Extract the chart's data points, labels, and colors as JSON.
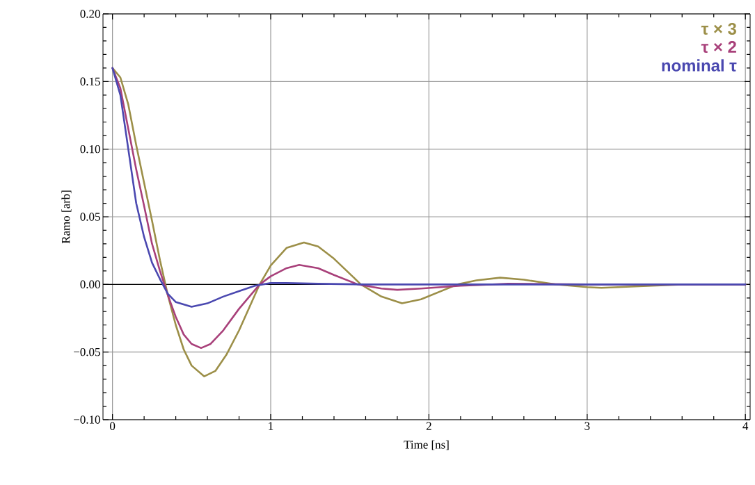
{
  "chart_data": {
    "type": "line",
    "xlabel": "Time [ns]",
    "ylabel": "Ramo [arb]",
    "xlim": [
      -0.06,
      4.03
    ],
    "ylim": [
      -0.1,
      0.2
    ],
    "xticks": [
      0,
      1,
      2,
      3,
      4
    ],
    "yticks": [
      {
        "value": -0.1,
        "label": "−0.10"
      },
      {
        "value": -0.05,
        "label": "−0.05"
      },
      "0.00",
      "0.05",
      "0.10",
      "0.15",
      "0.20"
    ],
    "grid": true,
    "legend": "top right",
    "marker": "none",
    "line_style": "solid",
    "ref_lines": [
      {
        "axis": "y",
        "value": 0,
        "color": "#000000"
      }
    ],
    "series": [
      {
        "name": "τ × 3",
        "color": "#9c8f48",
        "x": [
          0,
          0.05,
          0.1,
          0.15,
          0.2,
          0.25,
          0.3,
          0.35,
          0.4,
          0.45,
          0.5,
          0.58,
          0.65,
          0.72,
          0.8,
          0.93,
          1.0,
          1.1,
          1.21,
          1.3,
          1.4,
          1.57,
          1.7,
          1.83,
          1.95,
          2.18,
          2.3,
          2.45,
          2.6,
          2.8,
          3.0,
          3.09,
          3.3,
          3.6,
          4
        ],
        "values": [
          0.16,
          0.153,
          0.133,
          0.103,
          0.075,
          0.047,
          0.018,
          -0.008,
          -0.03,
          -0.048,
          -0.06,
          -0.068,
          -0.064,
          -0.052,
          -0.034,
          0,
          0.014,
          0.027,
          0.031,
          0.028,
          0.019,
          0,
          -0.009,
          -0.014,
          -0.011,
          0,
          0.003,
          0.005,
          0.0035,
          0,
          -0.002,
          -0.0025,
          -0.0015,
          0,
          0
        ]
      },
      {
        "name": "τ × 2",
        "color": "#a8407a",
        "x": [
          0,
          0.05,
          0.1,
          0.15,
          0.2,
          0.25,
          0.3,
          0.35,
          0.4,
          0.45,
          0.5,
          0.56,
          0.62,
          0.7,
          0.8,
          0.93,
          1.0,
          1.1,
          1.18,
          1.3,
          1.4,
          1.55,
          1.7,
          1.8,
          1.95,
          2.2,
          2.5,
          3,
          4
        ],
        "values": [
          0.16,
          0.145,
          0.115,
          0.085,
          0.058,
          0.03,
          0.01,
          -0.008,
          -0.024,
          -0.037,
          -0.044,
          -0.047,
          -0.044,
          -0.034,
          -0.018,
          0,
          0.006,
          0.012,
          0.0144,
          0.012,
          0.007,
          0,
          -0.003,
          -0.004,
          -0.003,
          -0.001,
          0.0005,
          0,
          0
        ]
      },
      {
        "name": "nominal τ",
        "color": "#4a48b0",
        "x": [
          0,
          0.05,
          0.1,
          0.15,
          0.2,
          0.25,
          0.3,
          0.35,
          0.4,
          0.5,
          0.6,
          0.7,
          0.8,
          0.9,
          1.0,
          1.1,
          1.3,
          1.6,
          2,
          3,
          4
        ],
        "values": [
          0.16,
          0.14,
          0.1,
          0.06,
          0.035,
          0.016,
          0.004,
          -0.007,
          -0.013,
          -0.0165,
          -0.014,
          -0.009,
          -0.005,
          -0.001,
          0.001,
          0.001,
          0.0005,
          0,
          0,
          0,
          0
        ]
      }
    ]
  }
}
